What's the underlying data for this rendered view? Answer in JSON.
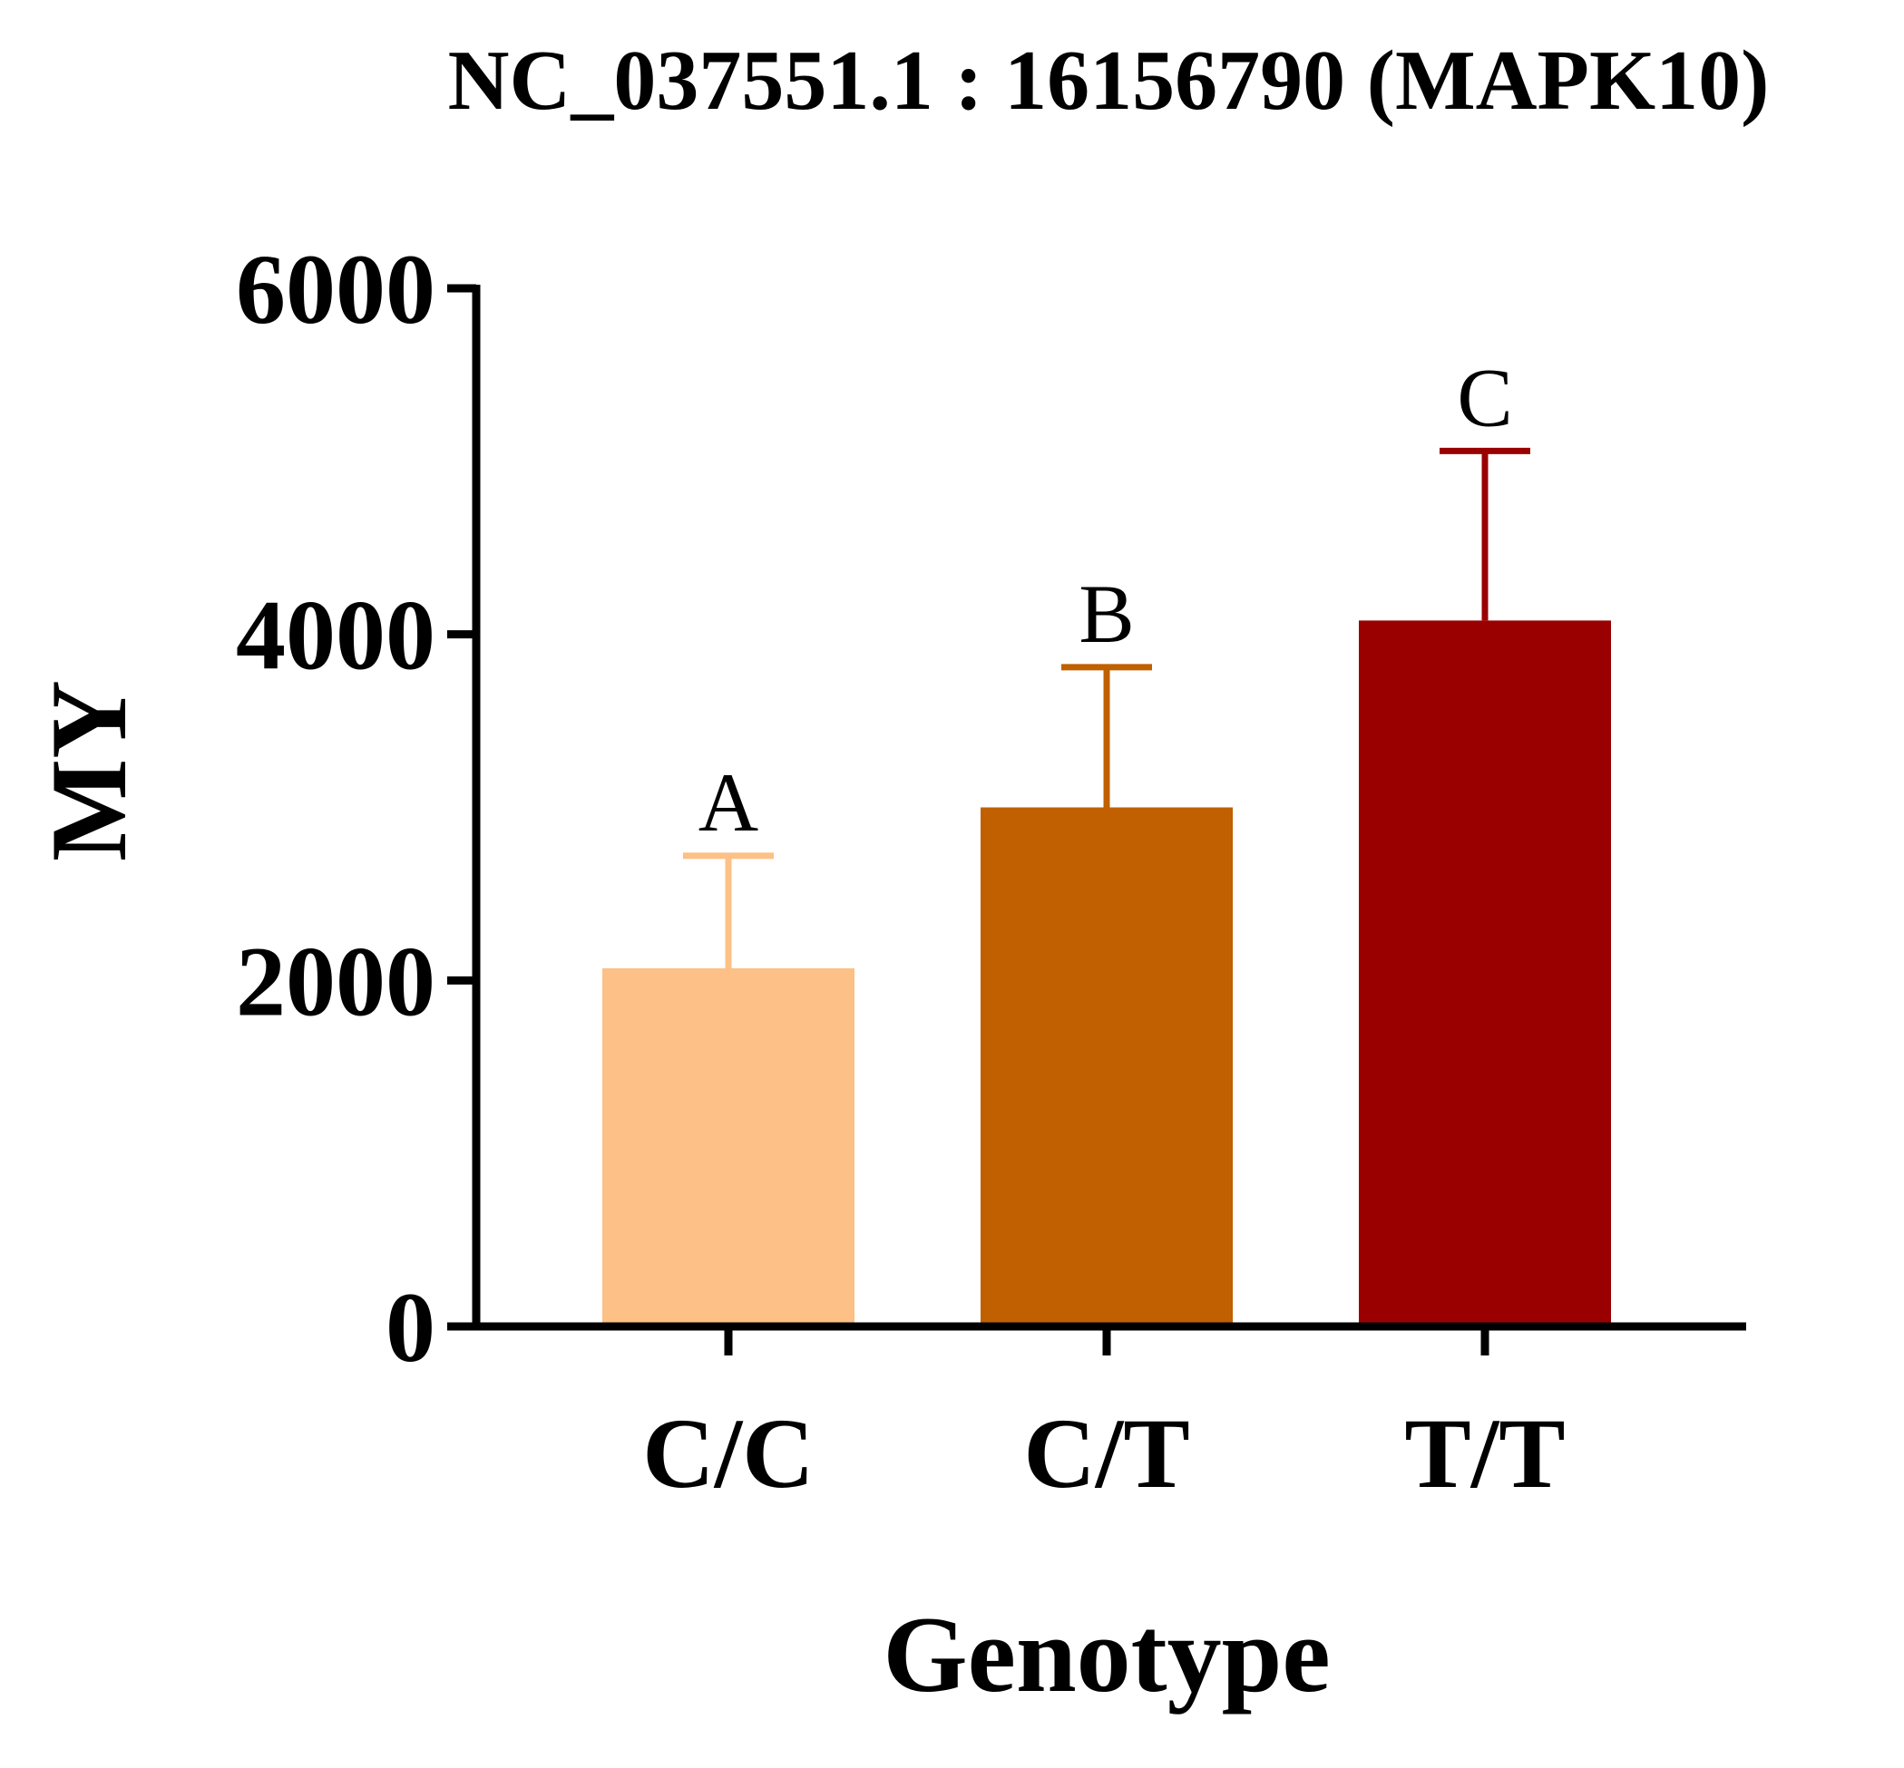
{
  "chart_data": {
    "type": "bar",
    "title": "NC_037551.1 : 16156790 (MAPK10)",
    "xlabel": "Genotype",
    "ylabel": "MY",
    "ylim": [
      0,
      6000
    ],
    "yticks": [
      "0",
      "2000",
      "4000",
      "6000"
    ],
    "categories": [
      "C/C",
      "C/T",
      "T/T"
    ],
    "values": [
      2070,
      3000,
      4080
    ],
    "errors": [
      650,
      810,
      980
    ],
    "significance": [
      "A",
      "B",
      "C"
    ],
    "colors": [
      "#FDC086",
      "#C06000",
      "#9A0000"
    ],
    "grid": false,
    "legend": "none"
  }
}
